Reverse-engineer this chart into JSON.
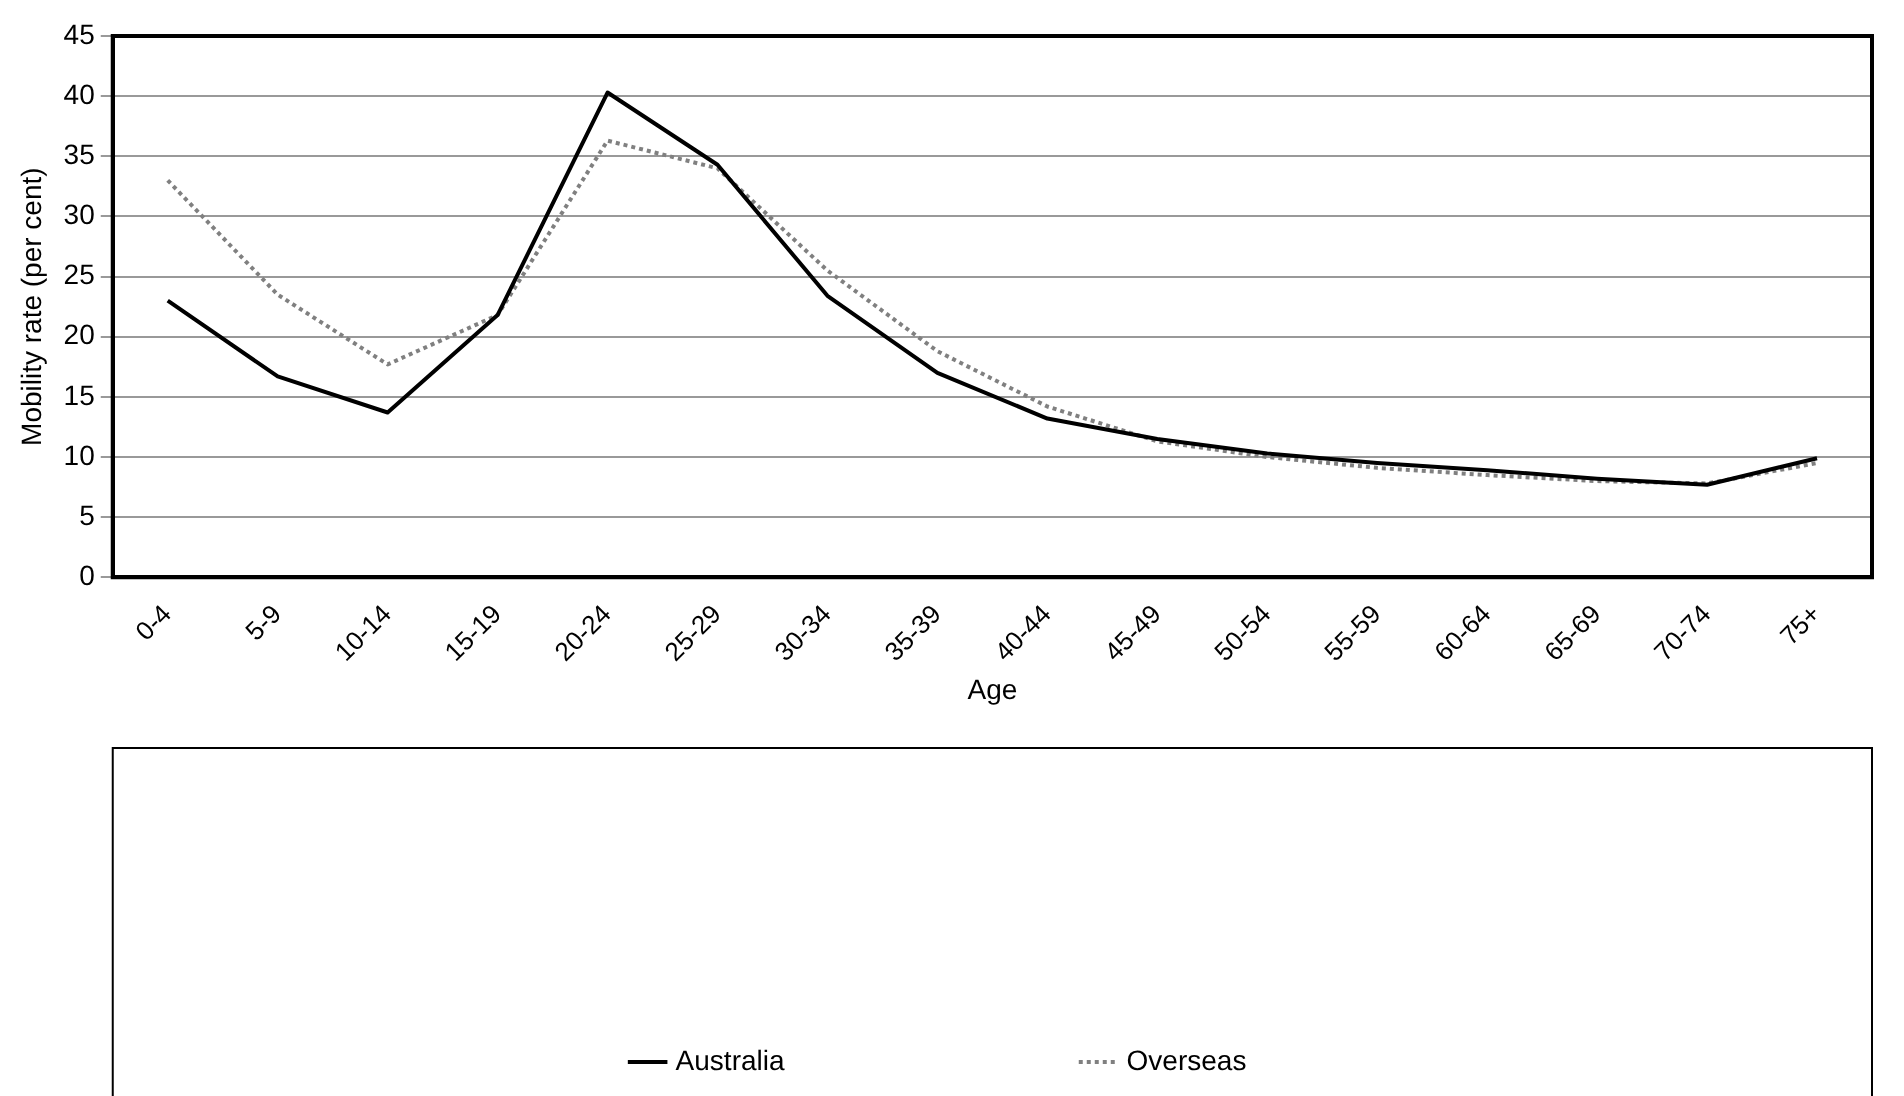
{
  "chart_data": {
    "type": "line",
    "xlabel": "Age",
    "ylabel": "Mobility rate (per cent)",
    "categories": [
      "0-4",
      "5-9",
      "10-14",
      "15-19",
      "20-24",
      "25-29",
      "30-34",
      "35-39",
      "40-44",
      "45-49",
      "50-54",
      "55-59",
      "60-64",
      "65-69",
      "70-74",
      "75+"
    ],
    "series": [
      {
        "name": "Australia",
        "color": "#000000",
        "line_style": "solid",
        "values": [
          23,
          16.7,
          13.7,
          21.8,
          40.3,
          34.3,
          23.4,
          17,
          13.2,
          11.5,
          10.3,
          9.5,
          8.9,
          8.2,
          7.7,
          9.9
        ]
      },
      {
        "name": "Overseas",
        "color": "#808080",
        "line_style": "dotted",
        "values": [
          33,
          23.5,
          17.7,
          21.8,
          36.3,
          34,
          25.5,
          18.8,
          14.2,
          11.3,
          10,
          9.1,
          8.5,
          8,
          7.8,
          9.5
        ]
      }
    ],
    "ylim": [
      0,
      45
    ],
    "yticks": [
      0,
      5,
      10,
      15,
      20,
      25,
      30,
      35,
      40,
      45
    ],
    "grid": "y",
    "legend": "bottom",
    "marker": "none"
  }
}
